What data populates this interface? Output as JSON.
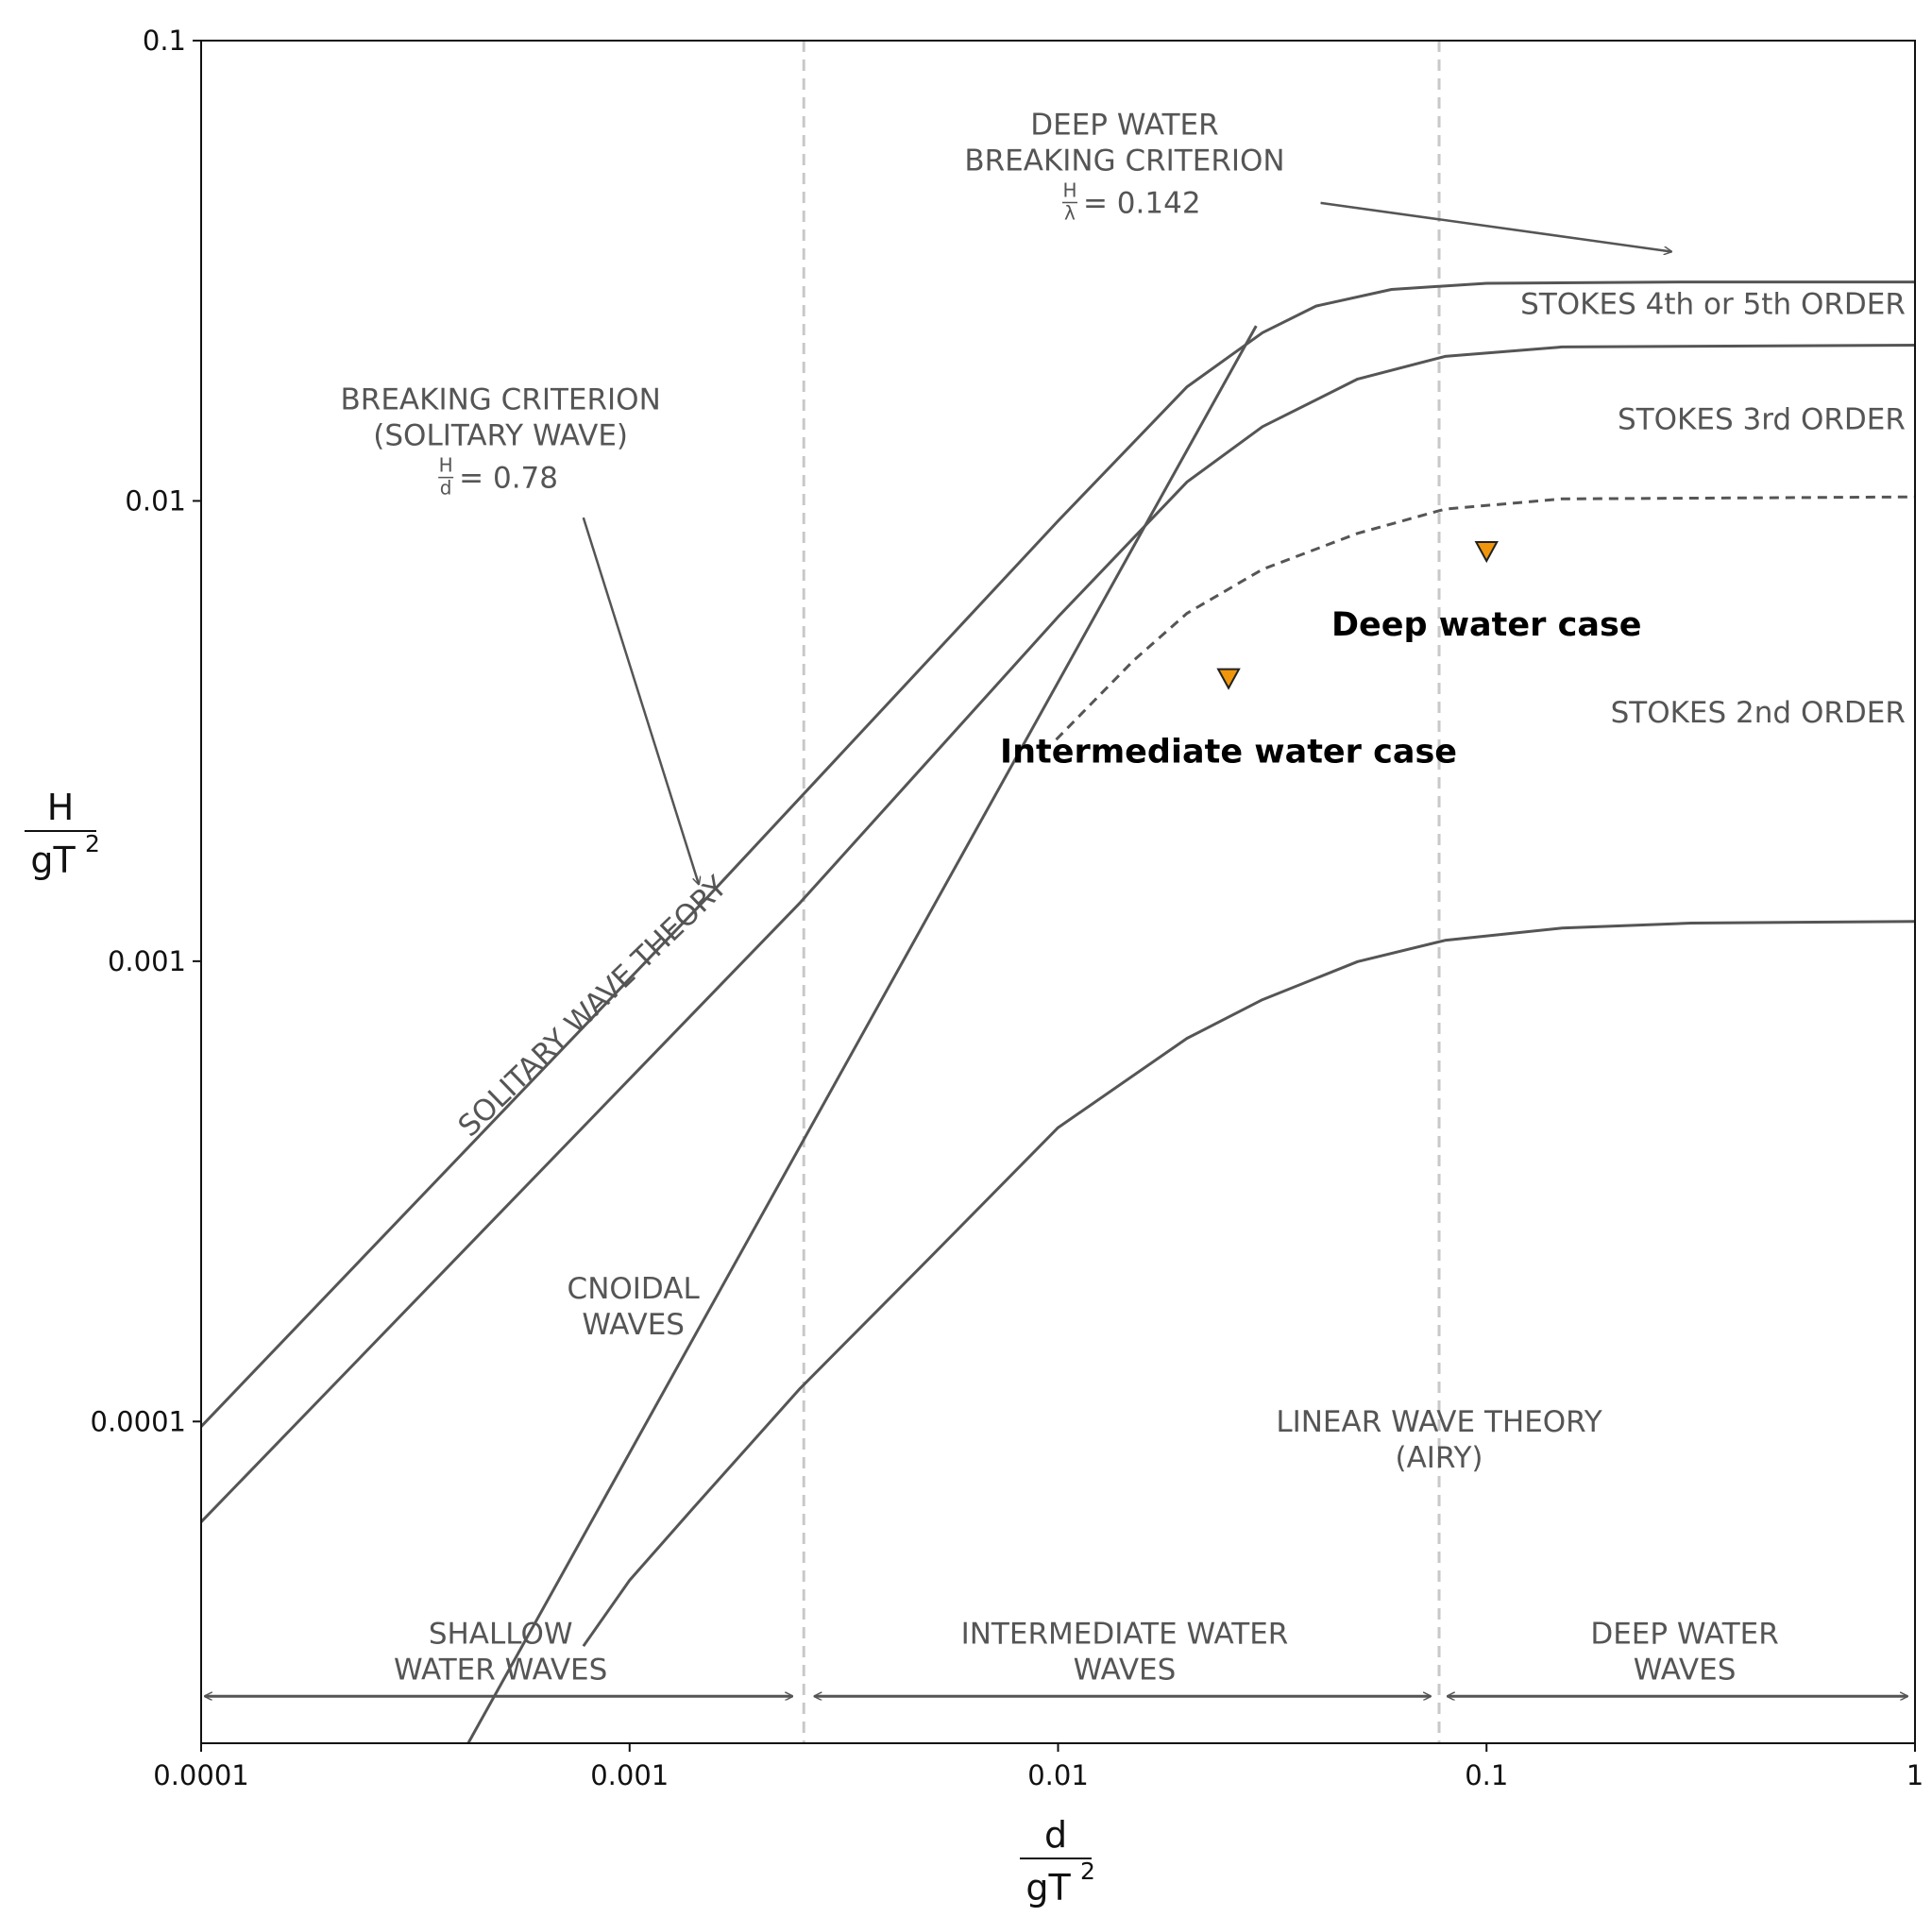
{
  "chart_data": {
    "type": "line",
    "x_scale": "log",
    "y_scale": "log",
    "xlim": [
      0.0001,
      1
    ],
    "ylim": [
      2e-05,
      0.1
    ],
    "xlabel": {
      "numerator": "d",
      "denominator": "gT",
      "power": "2"
    },
    "ylabel": {
      "numerator": "H",
      "denominator": "gT",
      "power": "2"
    },
    "x_ticks": [
      {
        "value": 0.0001,
        "label": "0.0001"
      },
      {
        "value": 0.001,
        "label": "0.001"
      },
      {
        "value": 0.01,
        "label": "0.01"
      },
      {
        "value": 0.1,
        "label": "0.1"
      },
      {
        "value": 1,
        "label": "1"
      }
    ],
    "y_ticks": [
      {
        "value": 0.0001,
        "label": "0.0001"
      },
      {
        "value": 0.001,
        "label": "0.001"
      },
      {
        "value": 0.01,
        "label": "0.01"
      },
      {
        "value": 0.1,
        "label": "0.1"
      }
    ],
    "grid": false,
    "vertical_lines": [
      0.00255,
      0.0775
    ],
    "curves": [
      {
        "style": "solid",
        "points": [
          [
            0.0001,
            9.75e-05
          ],
          [
            0.0015,
            0.00136
          ],
          [
            0.01,
            0.00905
          ],
          [
            0.02,
            0.0177
          ],
          [
            0.03,
            0.0232
          ],
          [
            0.04,
            0.0265
          ],
          [
            0.06,
            0.0288
          ],
          [
            0.1,
            0.0297
          ],
          [
            0.3,
            0.0299
          ],
          [
            1,
            0.0299
          ]
        ]
      },
      {
        "style": "solid",
        "points": [
          [
            0.0001,
            6.05e-05
          ],
          [
            0.0025,
            0.00134
          ],
          [
            0.01,
            0.0056
          ],
          [
            0.02,
            0.011
          ],
          [
            0.03,
            0.0145
          ],
          [
            0.05,
            0.0184
          ],
          [
            0.08,
            0.0206
          ],
          [
            0.15,
            0.0216
          ],
          [
            1,
            0.0218
          ]
        ]
      },
      {
        "style": "dashed",
        "points": [
          [
            0.0099,
            0.00303
          ],
          [
            0.015,
            0.0045
          ],
          [
            0.02,
            0.0057
          ],
          [
            0.03,
            0.0071
          ],
          [
            0.05,
            0.0085
          ],
          [
            0.08,
            0.0096
          ],
          [
            0.15,
            0.0101
          ],
          [
            1,
            0.0102
          ]
        ]
      },
      {
        "style": "solid",
        "points": [
          [
            0.00078,
            3.25e-05
          ],
          [
            0.001,
            4.52e-05
          ],
          [
            0.0014,
            6.45e-05
          ],
          [
            0.0025,
            0.000118
          ],
          [
            0.005,
            0.000226
          ],
          [
            0.01,
            0.000435
          ],
          [
            0.02,
            0.00068
          ],
          [
            0.03,
            0.000825
          ],
          [
            0.05,
            0.000998
          ],
          [
            0.08,
            0.00111
          ],
          [
            0.15,
            0.00118
          ],
          [
            0.3,
            0.00121
          ],
          [
            1,
            0.00122
          ]
        ]
      },
      {
        "style": "solid",
        "points": [
          [
            0.00042,
            2e-05
          ],
          [
            0.029,
            0.024
          ]
        ]
      }
    ],
    "arrows": [
      {
        "label_ref": "deep_breaking",
        "from": [
          0.041,
          0.0444
        ],
        "to": [
          0.27,
          0.0348
        ]
      },
      {
        "label_ref": "solitary_breaking",
        "from": [
          0.00078,
          0.0092
        ],
        "to": [
          0.00145,
          0.00147
        ]
      }
    ],
    "range_arrows": [
      {
        "from": 0.000102,
        "to": 0.0024,
        "y": 2.53e-05
      },
      {
        "from": 0.0027,
        "to": 0.074,
        "y": 2.53e-05
      },
      {
        "from": 0.081,
        "to": 0.96,
        "y": 2.53e-05
      }
    ],
    "annotations": {
      "deep_breaking": {
        "lines": [
          "DEEP WATER",
          "BREAKING CRITERION"
        ],
        "formula": {
          "num": "H",
          "den": "λ",
          "value": "= 0.142"
        },
        "x": 0.0143,
        "y": 0.0625
      },
      "solitary_breaking": {
        "lines": [
          "BREAKING CRITERION",
          "(SOLITARY WAVE)"
        ],
        "formula": {
          "num": "H",
          "den": "d",
          "value": "= 0.78"
        },
        "x": 0.0005,
        "y": 0.0158
      },
      "stokes_45": {
        "lines": [
          "STOKES 4th or 5th ORDER"
        ],
        "x": 0.95,
        "y": 0.0255
      },
      "stokes_3": {
        "lines": [
          "STOKES 3rd ORDER"
        ],
        "x": 0.95,
        "y": 0.0143
      },
      "stokes_2": {
        "lines": [
          "STOKES 2nd ORDER"
        ],
        "x": 0.95,
        "y": 0.0033
      },
      "solitary_theory": {
        "lines": [
          "SOLITARY WAVE THEORY"
        ],
        "x": 0.00085,
        "y": 0.00077
      },
      "cnoidal": {
        "lines": [
          "CNOIDAL",
          "WAVES"
        ],
        "x": 0.00102,
        "y": 0.000185
      },
      "linear": {
        "lines": [
          "LINEAR WAVE THEORY",
          "(AIRY)"
        ],
        "x": 0.0775,
        "y": 9.5e-05
      },
      "shallow": {
        "lines": [
          "SHALLOW",
          "WATER WAVES"
        ],
        "x": 0.0005,
        "y": 3.29e-05
      },
      "intermediate": {
        "lines": [
          "INTERMEDIATE WATER",
          "WAVES"
        ],
        "x": 0.0143,
        "y": 3.29e-05
      },
      "deep": {
        "lines": [
          "DEEP WATER",
          "WAVES"
        ],
        "x": 0.29,
        "y": 3.29e-05
      }
    },
    "series": [
      {
        "name": "Deep water case",
        "marker": "triangle-down",
        "color": "#f0960c",
        "points": [
          [
            0.1,
            0.0078
          ]
        ],
        "label_x": 0.1,
        "label_y": 0.0051
      },
      {
        "name": "Intermediate water case",
        "marker": "triangle-down",
        "color": "#f0960c",
        "points": [
          [
            0.025,
            0.00413
          ]
        ],
        "label_x": 0.025,
        "label_y": 0.0027
      }
    ]
  }
}
